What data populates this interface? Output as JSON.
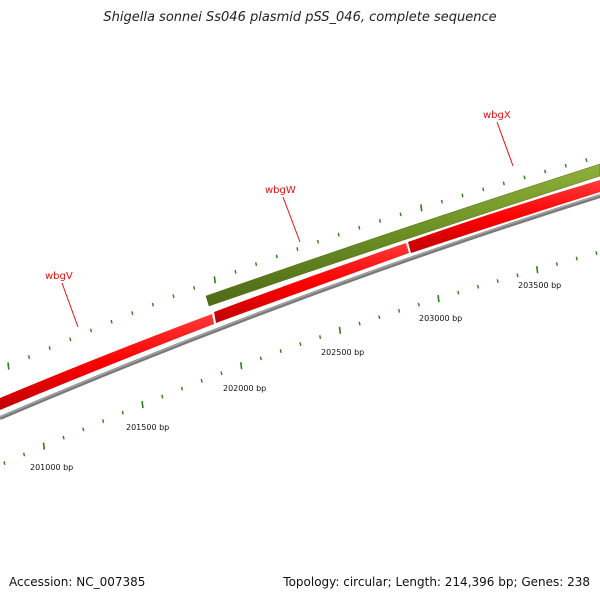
{
  "title": "Shigella sonnei Ss046 plasmid pSS_046, complete sequence",
  "footer": {
    "accession": "Accession: NC_007385",
    "summary": "Topology: circular; Length: 214,396 bp; Genes: 238"
  },
  "colors": {
    "forward_gene": "#6b8e23",
    "reverse_gene": "#ff0000",
    "backbone": "#808080",
    "tick": "#2f7f1a",
    "gene_label": "#e8100f"
  },
  "genes": [
    {
      "name": "wbgV",
      "strand": "reverse"
    },
    {
      "name": "wbgW",
      "strand": "reverse"
    },
    {
      "name": "wbgX",
      "strand": "reverse"
    }
  ],
  "position_labels": [
    "201000 bp",
    "201500 bp",
    "202000 bp",
    "202500 bp",
    "203000 bp",
    "203500 bp"
  ]
}
